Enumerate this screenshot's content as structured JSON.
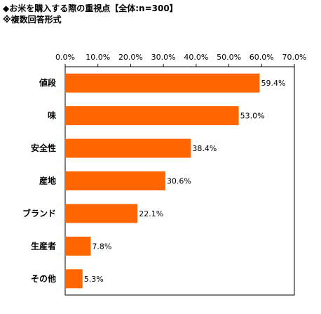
{
  "chart_data": {
    "type": "bar",
    "orientation": "horizontal",
    "title": "◆お米を購入する際の重視点【全体:n=300】",
    "subtitle": "※複数回答形式",
    "categories": [
      "値段",
      "味",
      "安全性",
      "産地",
      "ブランド",
      "生産者",
      "その他"
    ],
    "values": [
      59.4,
      53.0,
      38.4,
      30.6,
      22.1,
      7.8,
      5.3
    ],
    "value_labels": [
      "59.4%",
      "53.0%",
      "38.4%",
      "30.6%",
      "22.1%",
      "7.8%",
      "5.3%"
    ],
    "x_ticks": [
      0,
      10,
      20,
      30,
      40,
      50,
      60,
      70
    ],
    "x_tick_labels": [
      "0.0%",
      "10.0%",
      "20.0%",
      "30.0%",
      "40.0%",
      "50.0%",
      "60.0%",
      "70.0%"
    ],
    "xlim": [
      0,
      70
    ],
    "xaxis_position": "top",
    "grid": false,
    "bar_color": "#ff6600"
  }
}
